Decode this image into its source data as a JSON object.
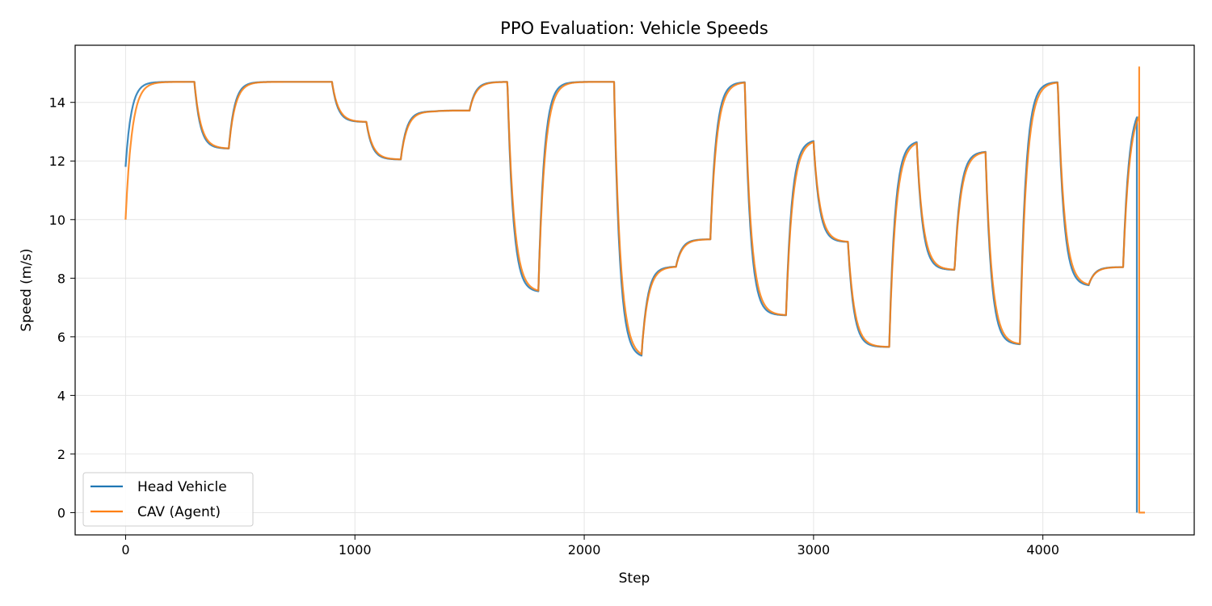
{
  "chart_data": {
    "type": "line",
    "title": "PPO Evaluation: Vehicle Speeds",
    "xlabel": "Step",
    "ylabel": "Speed (m/s)",
    "xlim": [
      -220,
      4660
    ],
    "ylim": [
      -0.76,
      15.95
    ],
    "xticks": [
      0,
      1000,
      2000,
      3000,
      4000
    ],
    "yticks": [
      0,
      2,
      4,
      6,
      8,
      10,
      12,
      14
    ],
    "grid": true,
    "legend_position": "lower-left",
    "segment_starts": [
      0,
      300,
      450,
      900,
      1050,
      1200,
      1350,
      1500,
      1665,
      1800,
      2100,
      2130,
      2250,
      2400,
      2550,
      2700,
      2850,
      2880,
      3000,
      3150,
      3300,
      3330,
      3450,
      3600,
      3615,
      3750,
      3900,
      4050,
      4065,
      4200,
      4350
    ],
    "segment_targets": [
      14.7,
      12.42,
      14.7,
      13.33,
      12.05,
      13.7,
      13.72,
      14.7,
      7.52,
      14.7,
      14.7,
      5.28,
      8.4,
      9.33,
      14.7,
      6.73,
      6.73,
      12.73,
      9.23,
      5.65,
      5.65,
      12.7,
      8.28,
      8.28,
      12.33,
      5.73,
      14.7,
      14.7,
      7.73,
      8.38,
      14.0
    ],
    "series": [
      {
        "name": "Head Vehicle",
        "color": "#1f77b4",
        "start_value": 11.8,
        "tau": 25,
        "end_step": 4410,
        "final_value": 0
      },
      {
        "name": "CAV (Agent)",
        "color": "#ff7f0e",
        "start_value": 10.0,
        "tau": 28,
        "end_step": 4420,
        "peak_value": 15.2,
        "final_value": 0,
        "final_step": 4445
      }
    ]
  }
}
